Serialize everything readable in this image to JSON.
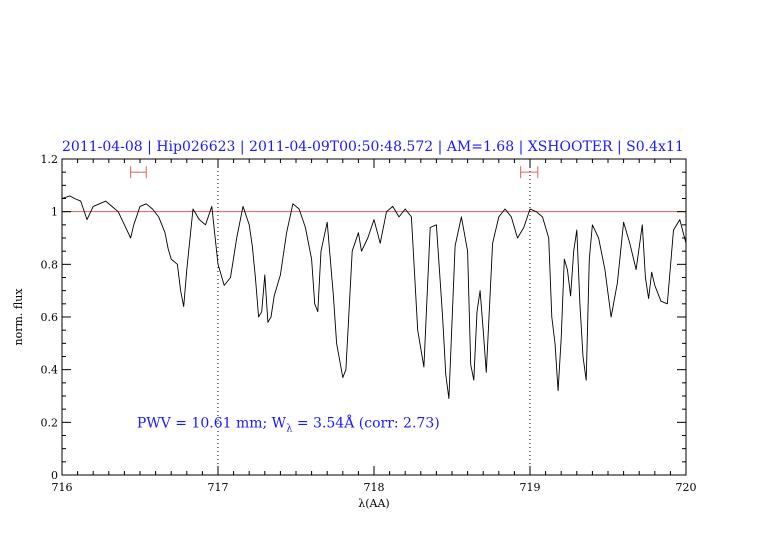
{
  "chart_data": {
    "type": "line",
    "title": "2011-04-08 | Hip026623 | 2011-04-09T00:50:48.572 | AM=1.68 | XSHOOTER | S0.4x11",
    "xlabel": "λ(AA)",
    "ylabel": "norm. flux",
    "xlim": [
      716,
      720
    ],
    "ylim": [
      0,
      1.2
    ],
    "x_ticks": [
      716,
      717,
      718,
      719,
      720
    ],
    "x_tick_labels": [
      "716",
      "717",
      "718",
      "719",
      "720"
    ],
    "y_ticks": [
      0,
      0.2,
      0.4,
      0.6,
      0.8,
      1,
      1.2
    ],
    "y_tick_labels": [
      "0",
      "0.2",
      "0.4",
      "0.6",
      "0.8",
      "1",
      "1.2"
    ],
    "reference_line": {
      "y": 1.0,
      "color": "#e06060"
    },
    "vertical_markers": [
      717.0,
      719.0
    ],
    "ranges": [
      {
        "x0": 716.44,
        "x1": 716.54,
        "y": 1.15,
        "color": "#e06060"
      },
      {
        "x0": 718.94,
        "x1": 719.05,
        "y": 1.15,
        "color": "#e06060"
      }
    ],
    "annotation": {
      "pre": "PWV = 10.61 mm; W",
      "sub": "λ",
      "post": " = 3.54Å (corr: 2.73)",
      "x": 716.48,
      "y": 0.2
    },
    "series": [
      {
        "color": "#000000",
        "x": [
          716.0,
          716.05,
          716.08,
          716.12,
          716.16,
          716.2,
          716.24,
          716.28,
          716.32,
          716.36,
          716.4,
          716.44,
          716.46,
          716.5,
          716.54,
          716.58,
          716.62,
          716.66,
          716.68,
          716.7,
          716.74,
          716.76,
          716.78,
          716.8,
          716.84,
          716.88,
          716.92,
          716.96,
          717.0,
          717.04,
          717.08,
          717.12,
          717.16,
          717.2,
          717.22,
          717.24,
          717.26,
          717.28,
          717.3,
          717.32,
          717.34,
          717.36,
          717.4,
          717.44,
          717.48,
          717.52,
          717.56,
          717.6,
          717.62,
          717.64,
          717.66,
          717.7,
          717.74,
          717.76,
          717.8,
          717.82,
          717.84,
          717.86,
          717.9,
          717.92,
          717.96,
          718.0,
          718.04,
          718.08,
          718.12,
          718.16,
          718.2,
          718.24,
          718.28,
          718.32,
          718.36,
          718.4,
          718.44,
          718.46,
          718.48,
          718.52,
          718.56,
          718.6,
          718.62,
          718.64,
          718.66,
          718.68,
          718.7,
          718.72,
          718.76,
          718.8,
          718.84,
          718.88,
          718.92,
          718.96,
          719.0,
          719.04,
          719.08,
          719.12,
          719.14,
          719.16,
          719.18,
          719.2,
          719.22,
          719.24,
          719.26,
          719.28,
          719.3,
          719.32,
          719.34,
          719.36,
          719.38,
          719.4,
          719.44,
          719.48,
          719.52,
          719.56,
          719.6,
          719.64,
          719.68,
          719.72,
          719.74,
          719.76,
          719.78,
          719.8,
          719.84,
          719.88,
          719.92,
          719.96,
          720.0
        ],
        "y": [
          1.05,
          1.06,
          1.05,
          1.04,
          0.97,
          1.02,
          1.03,
          1.04,
          1.02,
          1.0,
          0.95,
          0.9,
          0.95,
          1.02,
          1.03,
          1.01,
          0.98,
          0.92,
          0.86,
          0.82,
          0.8,
          0.7,
          0.64,
          0.78,
          1.01,
          0.97,
          0.95,
          1.02,
          0.8,
          0.72,
          0.75,
          0.9,
          1.02,
          0.95,
          0.87,
          0.75,
          0.6,
          0.62,
          0.76,
          0.58,
          0.6,
          0.68,
          0.76,
          0.92,
          1.03,
          1.01,
          0.94,
          0.82,
          0.65,
          0.62,
          0.85,
          0.96,
          0.68,
          0.5,
          0.37,
          0.4,
          0.62,
          0.85,
          0.92,
          0.85,
          0.9,
          0.97,
          0.88,
          1.0,
          1.02,
          0.98,
          1.01,
          0.98,
          0.55,
          0.41,
          0.94,
          0.95,
          0.6,
          0.38,
          0.29,
          0.87,
          0.98,
          0.85,
          0.42,
          0.36,
          0.62,
          0.7,
          0.55,
          0.39,
          0.88,
          0.98,
          1.01,
          0.98,
          0.9,
          0.94,
          1.01,
          1.0,
          0.98,
          0.9,
          0.6,
          0.5,
          0.32,
          0.52,
          0.82,
          0.78,
          0.68,
          0.85,
          0.93,
          0.65,
          0.45,
          0.36,
          0.82,
          0.95,
          0.9,
          0.78,
          0.6,
          0.73,
          0.96,
          0.88,
          0.78,
          0.95,
          0.75,
          0.67,
          0.77,
          0.72,
          0.66,
          0.65,
          0.93,
          0.97,
          0.88
        ]
      }
    ]
  }
}
